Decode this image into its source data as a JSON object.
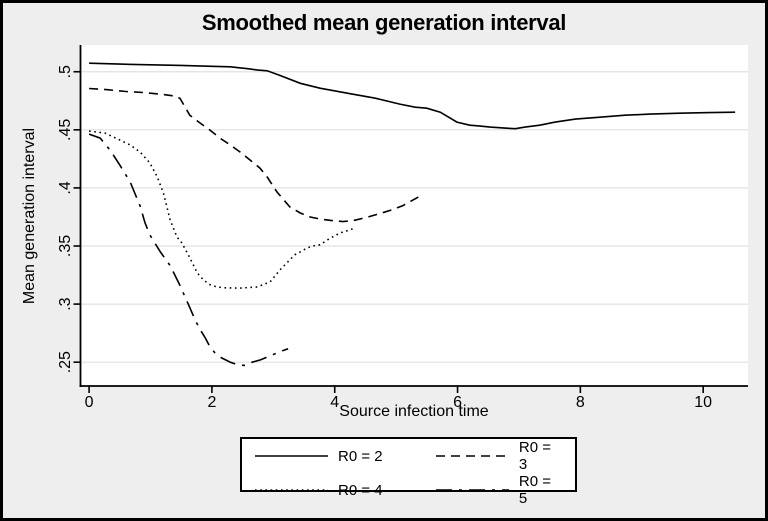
{
  "page": {
    "background_color": "#eeeeee",
    "frame_color": "#000000",
    "plot_background_color": "#ffffff",
    "grid_color": "#e0e0e0",
    "axis_color": "#000000",
    "line_color": "#000000"
  },
  "chart_data": {
    "type": "line",
    "title": "Smoothed mean generation interval",
    "xlabel": "Source infection time",
    "ylabel": "Mean generation interval",
    "xlim": [
      -0.14,
      10.73
    ],
    "ylim": [
      0.2295,
      0.523
    ],
    "grid": true,
    "legend_position": "bottom",
    "x_ticks": [
      {
        "value": 0,
        "label": "0"
      },
      {
        "value": 2,
        "label": "2"
      },
      {
        "value": 4,
        "label": "4"
      },
      {
        "value": 6,
        "label": "6"
      },
      {
        "value": 8,
        "label": "8"
      },
      {
        "value": 10,
        "label": "10"
      }
    ],
    "y_ticks": [
      {
        "value": 0.25,
        "label": ".25"
      },
      {
        "value": 0.3,
        "label": ".3"
      },
      {
        "value": 0.35,
        "label": ".35"
      },
      {
        "value": 0.4,
        "label": ".4"
      },
      {
        "value": 0.45,
        "label": ".45"
      },
      {
        "value": 0.5,
        "label": ".5"
      }
    ],
    "series": [
      {
        "name": "R0 = 2",
        "line_style": "solid",
        "color": "#000000",
        "points": [
          [
            0,
            0.5073
          ],
          [
            0.5,
            0.5066
          ],
          [
            1,
            0.506
          ],
          [
            1.5,
            0.5054
          ],
          [
            2,
            0.5047
          ],
          [
            2.3,
            0.5042
          ],
          [
            2.6,
            0.5025
          ],
          [
            2.75,
            0.5014
          ],
          [
            2.9,
            0.5008
          ],
          [
            3.1,
            0.497
          ],
          [
            3.44,
            0.49
          ],
          [
            3.76,
            0.4858
          ],
          [
            4.25,
            0.4811
          ],
          [
            4.66,
            0.4772
          ],
          [
            5.06,
            0.4721
          ],
          [
            5.31,
            0.4695
          ],
          [
            5.5,
            0.4686
          ],
          [
            5.72,
            0.4652
          ],
          [
            5.99,
            0.4566
          ],
          [
            6.2,
            0.454
          ],
          [
            6.37,
            0.4532
          ],
          [
            6.53,
            0.4523
          ],
          [
            6.77,
            0.4515
          ],
          [
            6.94,
            0.451
          ],
          [
            7.1,
            0.4523
          ],
          [
            7.34,
            0.454
          ],
          [
            7.59,
            0.4566
          ],
          [
            7.92,
            0.4592
          ],
          [
            8.32,
            0.4609
          ],
          [
            8.73,
            0.4626
          ],
          [
            9.14,
            0.4635
          ],
          [
            9.62,
            0.4643
          ],
          [
            10.11,
            0.4648
          ],
          [
            10.52,
            0.4652
          ]
        ]
      },
      {
        "name": "R0 = 3",
        "line_style": "dash",
        "color": "#000000",
        "points": [
          [
            0,
            0.4856
          ],
          [
            0.3,
            0.4845
          ],
          [
            0.6,
            0.483
          ],
          [
            0.9,
            0.482
          ],
          [
            1.2,
            0.4805
          ],
          [
            1.4,
            0.479
          ],
          [
            1.48,
            0.477
          ],
          [
            1.64,
            0.4626
          ],
          [
            1.81,
            0.4558
          ],
          [
            1.97,
            0.4497
          ],
          [
            2.13,
            0.4429
          ],
          [
            2.3,
            0.4369
          ],
          [
            2.46,
            0.4308
          ],
          [
            2.62,
            0.424
          ],
          [
            2.78,
            0.4171
          ],
          [
            2.9,
            0.4094
          ],
          [
            3.06,
            0.3965
          ],
          [
            3.27,
            0.3836
          ],
          [
            3.44,
            0.3784
          ],
          [
            3.6,
            0.375
          ],
          [
            3.76,
            0.3732
          ],
          [
            3.97,
            0.3718
          ],
          [
            4.14,
            0.371
          ],
          [
            4.33,
            0.3722
          ],
          [
            4.53,
            0.3748
          ],
          [
            4.74,
            0.378
          ],
          [
            4.95,
            0.3815
          ],
          [
            5.11,
            0.3848
          ],
          [
            5.28,
            0.3898
          ],
          [
            5.42,
            0.3938
          ]
        ]
      },
      {
        "name": "R0 = 4",
        "line_style": "dot",
        "color": "#000000",
        "points": [
          [
            0,
            0.4489
          ],
          [
            0.26,
            0.4472
          ],
          [
            0.5,
            0.4412
          ],
          [
            0.67,
            0.4369
          ],
          [
            0.83,
            0.4309
          ],
          [
            0.99,
            0.4214
          ],
          [
            1.11,
            0.4094
          ],
          [
            1.21,
            0.3956
          ],
          [
            1.32,
            0.3724
          ],
          [
            1.43,
            0.3578
          ],
          [
            1.51,
            0.3527
          ],
          [
            1.6,
            0.3441
          ],
          [
            1.68,
            0.3355
          ],
          [
            1.76,
            0.3269
          ],
          [
            1.86,
            0.3209
          ],
          [
            1.97,
            0.3166
          ],
          [
            2.08,
            0.3148
          ],
          [
            2.21,
            0.314
          ],
          [
            2.46,
            0.3138
          ],
          [
            2.74,
            0.3148
          ],
          [
            2.95,
            0.3192
          ],
          [
            3.11,
            0.3295
          ],
          [
            3.19,
            0.3338
          ],
          [
            3.27,
            0.3381
          ],
          [
            3.35,
            0.3424
          ],
          [
            3.44,
            0.3449
          ],
          [
            3.55,
            0.3484
          ],
          [
            3.65,
            0.3501
          ],
          [
            3.76,
            0.351
          ],
          [
            3.92,
            0.3565
          ],
          [
            4.09,
            0.3613
          ],
          [
            4.25,
            0.3639
          ],
          [
            4.33,
            0.3656
          ]
        ]
      },
      {
        "name": "R0 = 5",
        "line_style": "longdash-dot",
        "color": "#000000",
        "points": [
          [
            0,
            0.4463
          ],
          [
            0.18,
            0.4429
          ],
          [
            0.34,
            0.4326
          ],
          [
            0.5,
            0.4197
          ],
          [
            0.67,
            0.4051
          ],
          [
            0.83,
            0.3844
          ],
          [
            0.91,
            0.37
          ],
          [
            0.99,
            0.3595
          ],
          [
            1.16,
            0.345
          ],
          [
            1.32,
            0.333
          ],
          [
            1.48,
            0.316
          ],
          [
            1.64,
            0.297
          ],
          [
            1.73,
            0.286
          ],
          [
            1.81,
            0.278
          ],
          [
            1.89,
            0.271
          ],
          [
            1.97,
            0.263
          ],
          [
            2.05,
            0.258
          ],
          [
            2.13,
            0.2545
          ],
          [
            2.3,
            0.25
          ],
          [
            2.38,
            0.2485
          ],
          [
            2.46,
            0.2476
          ],
          [
            2.54,
            0.2472
          ],
          [
            2.62,
            0.2495
          ],
          [
            2.79,
            0.252
          ],
          [
            2.95,
            0.2555
          ],
          [
            3.11,
            0.259
          ],
          [
            3.24,
            0.2616
          ]
        ]
      }
    ]
  }
}
